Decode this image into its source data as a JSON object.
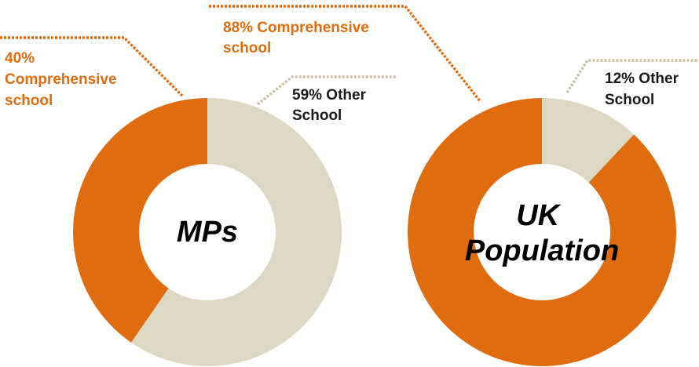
{
  "chart_data": [
    {
      "type": "pie",
      "title": "MPs",
      "start_angle_deg": 0,
      "slices": [
        {
          "name": "Comprehensive school",
          "value": 40,
          "label_lines": [
            "40%",
            "Comprehensive",
            "school"
          ],
          "color": "#E06C10"
        },
        {
          "name": "Other School",
          "value": 59,
          "label_lines": [
            "59% Other",
            "School"
          ],
          "color": "#DDD8C3"
        }
      ]
    },
    {
      "type": "pie",
      "title_lines": [
        "UK",
        "Population"
      ],
      "start_angle_deg": 0,
      "slices": [
        {
          "name": "Comprehensive school",
          "value": 88,
          "label_lines": [
            "88% Comprehensive",
            "school"
          ],
          "color": "#E06C10"
        },
        {
          "name": "Other School",
          "value": 12,
          "label_lines": [
            "12% Other",
            "School"
          ],
          "color": "#DDD8C3"
        }
      ]
    }
  ],
  "colors": {
    "comprehensive": "#E06C10",
    "other": "#DDD8C3",
    "leader_other": "#C9C2A8",
    "other_label_text": "#1A1A1A",
    "background": "#FFFFFF"
  }
}
